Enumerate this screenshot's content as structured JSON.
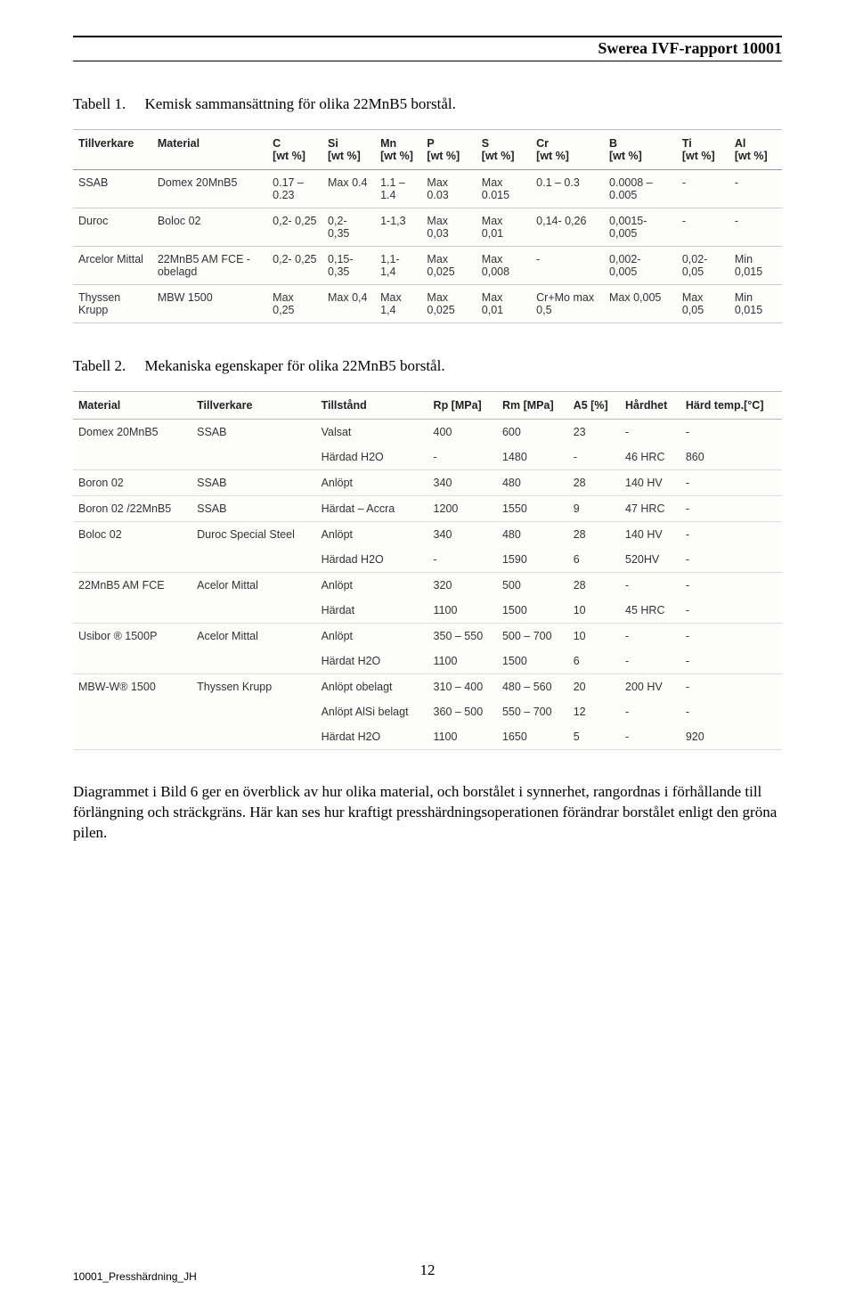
{
  "header": {
    "title": "Swerea IVF-rapport 10001"
  },
  "caption1": {
    "prefix": "Tabell 1.",
    "text": "Kemisk sammansättning för olika 22MnB5 borstål."
  },
  "caption2": {
    "prefix": "Tabell 2.",
    "text": "Mekaniska egenskaper för olika 22MnB5 borstål."
  },
  "table1": {
    "columns": [
      "Tillverkare",
      "Material",
      "C\n[wt %]",
      "Si\n[wt %]",
      "Mn\n[wt %]",
      "P\n[wt %]",
      "S\n[wt %]",
      "Cr\n[wt %]",
      "B\n[wt %]",
      "Ti\n[wt %]",
      "Al\n[wt %]"
    ],
    "rows": [
      [
        "SSAB",
        "Domex 20MnB5",
        "0.17 – 0.23",
        "Max 0.4",
        "1.1 – 1.4",
        "Max 0.03",
        "Max 0.015",
        "0.1 – 0.3",
        "0.0008 – 0.005",
        "-",
        "-"
      ],
      [
        "Duroc",
        "Boloc 02",
        "0,2- 0,25",
        "0,2- 0,35",
        "1-1,3",
        "Max 0,03",
        "Max 0,01",
        "0,14- 0,26",
        "0,0015- 0,005",
        "-",
        "-"
      ],
      [
        "Arcelor Mittal",
        "22MnB5 AM FCE - obelagd",
        "0,2- 0,25",
        "0,15- 0,35",
        "1,1- 1,4",
        "Max 0,025",
        "Max 0,008",
        "-",
        "0,002- 0,005",
        "0,02- 0,05",
        "Min 0,015"
      ],
      [
        "Thyssen Krupp",
        "MBW 1500",
        "Max 0,25",
        "Max 0,4",
        "Max 1,4",
        "Max 0,025",
        "Max 0,01",
        "Cr+Mo max 0,5",
        "Max 0,005",
        "Max 0,05",
        "Min 0,015"
      ]
    ]
  },
  "table2": {
    "columns": [
      "Material",
      "Tillverkare",
      "Tillstånd",
      "Rp [MPa]",
      "Rm [MPa]",
      "A5 [%]",
      "Hårdhet",
      "Härd temp.[°C]"
    ],
    "groups": [
      {
        "material": "Domex 20MnB5",
        "tillverkare": "SSAB",
        "rows": [
          [
            "Valsat",
            "400",
            "600",
            "23",
            "-",
            "-"
          ],
          [
            "Härdad H2O",
            "-",
            "1480",
            "-",
            "46 HRC",
            "860"
          ]
        ]
      },
      {
        "material": "Boron 02",
        "tillverkare": "SSAB",
        "rows": [
          [
            "Anlöpt",
            "340",
            "480",
            "28",
            "140 HV",
            "-"
          ]
        ]
      },
      {
        "material": "Boron 02 /22MnB5",
        "tillverkare": "SSAB",
        "rows": [
          [
            "Härdat – Accra",
            "1200",
            "1550",
            "9",
            "47 HRC",
            "-"
          ]
        ]
      },
      {
        "material": "Boloc 02",
        "tillverkare": "Duroc Special Steel",
        "rows": [
          [
            "Anlöpt",
            "340",
            "480",
            "28",
            "140 HV",
            "-"
          ],
          [
            "Härdad H2O",
            "-",
            "1590",
            "6",
            "520HV",
            "-"
          ]
        ]
      },
      {
        "material": "22MnB5 AM FCE",
        "tillverkare": "Acelor Mittal",
        "rows": [
          [
            "Anlöpt",
            "320",
            "500",
            "28",
            "-",
            "-"
          ],
          [
            "Härdat",
            "1100",
            "1500",
            "10",
            "45 HRC",
            "-"
          ]
        ]
      },
      {
        "material": "Usibor ® 1500P",
        "tillverkare": "Acelor Mittal",
        "rows": [
          [
            "Anlöpt",
            "350 – 550",
            "500 – 700",
            "10",
            "-",
            "-"
          ],
          [
            "Härdat H2O",
            "1100",
            "1500",
            "6",
            "-",
            "-"
          ]
        ]
      },
      {
        "material": "MBW-W® 1500",
        "tillverkare": "Thyssen Krupp",
        "rows": [
          [
            "Anlöpt obelagt",
            "310 – 400",
            "480 – 560",
            "20",
            "200 HV",
            "-"
          ],
          [
            "Anlöpt AlSi belagt",
            "360 – 500",
            "550 – 700",
            "12",
            "-",
            "-"
          ],
          [
            "Härdat H2O",
            "1100",
            "1650",
            "5",
            "-",
            "920"
          ]
        ]
      }
    ]
  },
  "paragraph": "Diagrammet i Bild 6 ger en överblick av hur olika material, och borstålet i synnerhet, rangordnas i förhållande till förlängning och sträckgräns. Här kan ses hur kraftigt presshärdningsoperationen förändrar borstålet enligt den gröna pilen.",
  "footer": {
    "left": "10001_Presshärdning_JH",
    "page": "12"
  }
}
